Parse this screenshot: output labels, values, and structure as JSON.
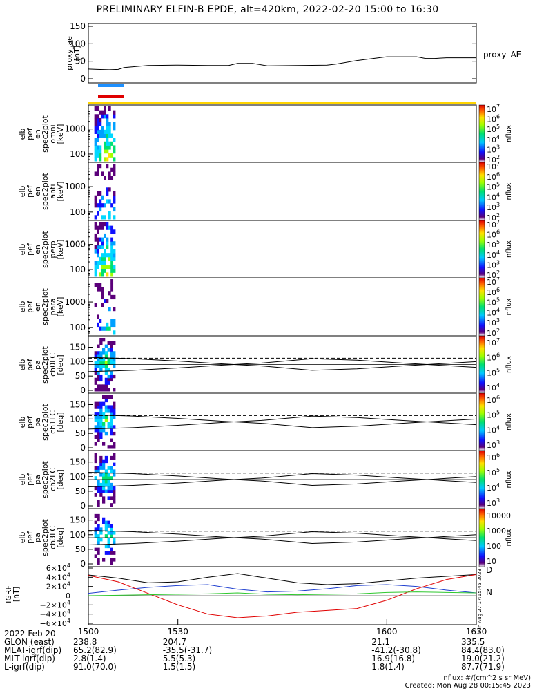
{
  "title": "PRELIMINARY ELFIN-B EPDE, alt=420km, 2022-02-20 15:00 to 16:30",
  "proxy_panel": {
    "ylabel_lines": [
      "proxy_ae",
      "[nT]"
    ],
    "yticks": [
      0,
      50,
      100,
      150
    ],
    "right_label": "proxy_AE"
  },
  "spectrogram_panels": [
    {
      "ylabel_lines": [
        "elb",
        "pef",
        "en",
        "spec2plot",
        "omni",
        "[keV]"
      ],
      "yticks": [
        "100",
        "1000"
      ],
      "cbar_ticks": [
        "10^7",
        "10^6",
        "10^5",
        "10^4",
        "10^3",
        "10^2"
      ],
      "cbar_label": "nflux"
    },
    {
      "ylabel_lines": [
        "elb",
        "pef",
        "en",
        "spec2plot",
        "anti",
        "[keV]"
      ],
      "yticks": [
        "100",
        "1000"
      ],
      "cbar_ticks": [
        "10^7",
        "10^6",
        "10^5",
        "10^4",
        "10^3",
        "10^2"
      ],
      "cbar_label": "nflux"
    },
    {
      "ylabel_lines": [
        "elb",
        "pef",
        "en",
        "spec2plot",
        "perp",
        "[keV]"
      ],
      "yticks": [
        "100",
        "1000"
      ],
      "cbar_ticks": [
        "10^7",
        "10^6",
        "10^5",
        "10^4",
        "10^3",
        "10^2"
      ],
      "cbar_label": "nflux"
    },
    {
      "ylabel_lines": [
        "elb",
        "pef",
        "en",
        "spec2plot",
        "para",
        "[keV]"
      ],
      "yticks": [
        "100",
        "1000"
      ],
      "cbar_ticks": [
        "10^7",
        "10^6",
        "10^5",
        "10^4",
        "10^3",
        "10^2"
      ],
      "cbar_label": "nflux"
    }
  ],
  "pitch_panels": [
    {
      "ylabel_lines": [
        "elb",
        "pef",
        "pa",
        "spec2plot",
        "ch0LC",
        "[deg]"
      ],
      "yticks": [
        0,
        50,
        100,
        150
      ],
      "cbar_ticks": [
        "10^7",
        "10^6",
        "10^5",
        "10^4"
      ],
      "cbar_label": "nflux"
    },
    {
      "ylabel_lines": [
        "elb",
        "pef",
        "pa",
        "spec2plot",
        "ch1LC",
        "[deg]"
      ],
      "yticks": [
        0,
        50,
        100,
        150
      ],
      "cbar_ticks": [
        "10^6",
        "10^5",
        "10^4",
        "10^3"
      ],
      "cbar_label": "nflux"
    },
    {
      "ylabel_lines": [
        "elb",
        "pef",
        "pa",
        "spec2plot",
        "ch2LC",
        "[deg]"
      ],
      "yticks": [
        0,
        50,
        100,
        150
      ],
      "cbar_ticks": [
        "10^6",
        "10^5",
        "10^4",
        "10^3"
      ],
      "cbar_label": "nflux"
    },
    {
      "ylabel_lines": [
        "elb",
        "pef",
        "pa",
        "spec2plot",
        "ch3LC",
        "[deg]"
      ],
      "yticks": [
        0,
        50,
        100,
        150
      ],
      "cbar_ticks": [
        "10000",
        "1000",
        "100",
        "10"
      ],
      "cbar_label": "nflux"
    }
  ],
  "igrf_panel": {
    "ylabel_lines": [
      "IGRF",
      "[nT]"
    ],
    "yticks": [
      "6×10^4",
      "4×10^4",
      "2×10^4",
      "0",
      "−2×10^4",
      "−4×10^4",
      "−6×10^4"
    ],
    "legend": [
      "D",
      "N"
    ],
    "side_text": "Sun Aug 27 17:15:45 2023"
  },
  "time_axis": {
    "tick_labels": [
      "1500",
      "1530",
      "1600",
      "1630"
    ]
  },
  "ephemeris": {
    "rows": [
      {
        "label": "2022 Feb 20",
        "values": [
          "",
          "",
          "",
          ""
        ]
      },
      {
        "label": "GLON (east)",
        "values": [
          "238.8",
          "204.7",
          "21.1",
          "335.5"
        ]
      },
      {
        "label": "MLAT-igrf(dip)",
        "values": [
          "65.2(82.9)",
          "-35.5(-31.7)",
          "-41.2(-30.8)",
          "84.4(83.0)"
        ]
      },
      {
        "label": "MLT-igrf(dip)",
        "values": [
          "2.8(1.4)",
          "5.5(5.3)",
          "16.9(16.8)",
          "19.0(21.2)"
        ]
      },
      {
        "label": "L-igrf(dip)",
        "values": [
          "91.0(70.0)",
          "1.5(1.5)",
          "1.8(1.4)",
          "87.7(71.9)"
        ]
      }
    ]
  },
  "footer": {
    "units": "nflux: #/(cm^2 s sr MeV)",
    "created": "Created: Mon Aug 28 00:15:45 2023"
  },
  "colors": {
    "bar_blue": "#1e90ff",
    "bar_red": "#e00000",
    "bar_yellow": "#ffd400",
    "igrf_black": "#000000",
    "igrf_blue": "#1f3fcf",
    "igrf_red": "#e00000",
    "igrf_green": "#2ec82e"
  },
  "chart_data": [
    {
      "type": "line",
      "panel": "proxy_ae",
      "x": [
        1500,
        1503,
        1507,
        1510,
        1512,
        1520,
        1530,
        1540,
        1547,
        1550,
        1555,
        1560,
        1570,
        1580,
        1583,
        1590,
        1600,
        1610,
        1613,
        1616,
        1620,
        1630
      ],
      "series": [
        {
          "name": "proxy_AE",
          "values": [
            28,
            27,
            26,
            27,
            32,
            38,
            39,
            38,
            38,
            44,
            44,
            37,
            38,
            39,
            42,
            52,
            63,
            63,
            58,
            58,
            60,
            60
          ]
        }
      ],
      "xlim": [
        1500,
        1630
      ],
      "ylim": [
        0,
        150
      ]
    },
    {
      "type": "heatmap",
      "panel": "energy_spectrograms",
      "x_active_range": [
        1502,
        1509
      ],
      "yscale": "log",
      "ylim_keV": [
        60,
        7000
      ],
      "colorbar_range": [
        100,
        10000000
      ]
    },
    {
      "type": "line",
      "panel": "pitch_angle_loss_cone",
      "x": [
        1500,
        1515,
        1530,
        1545,
        1558,
        1575,
        1590,
        1605,
        1620,
        1630
      ],
      "series": [
        {
          "name": "",
          "values": [
            65,
            70,
            78,
            88,
            95,
            110,
            105,
            95,
            86,
            80
          ]
        },
        {
          "name": "",
          "values": [
            115,
            110,
            102,
            92,
            85,
            70,
            75,
            85,
            94,
            100
          ]
        }
      ],
      "xlim": [
        1500,
        1630
      ],
      "ylim": [
        0,
        180
      ]
    },
    {
      "type": "line",
      "panel": "igrf",
      "x": [
        1500,
        1510,
        1520,
        1530,
        1540,
        1550,
        1560,
        1570,
        1580,
        1590,
        1600,
        1610,
        1620,
        1630
      ],
      "series": [
        {
          "name": "",
          "values": [
            45000,
            38000,
            28000,
            30000,
            40000,
            48000,
            38000,
            28000,
            24000,
            26000,
            32000,
            38000,
            42000,
            46000
          ]
        },
        {
          "name": "",
          "values": [
            5000,
            12000,
            18000,
            22000,
            24000,
            14000,
            8000,
            10000,
            15000,
            22000,
            24000,
            20000,
            12000,
            6000
          ]
        },
        {
          "name": "",
          "values": [
            44000,
            30000,
            5000,
            -20000,
            -40000,
            -48000,
            -44000,
            -36000,
            -32000,
            -28000,
            -10000,
            15000,
            35000,
            46000
          ]
        },
        {
          "name": "",
          "values": [
            0,
            1000,
            2000,
            3000,
            4000,
            6000,
            3000,
            2000,
            3000,
            4000,
            7000,
            8000,
            7000,
            6000
          ]
        }
      ],
      "xlim": [
        1500,
        1630
      ],
      "ylim": [
        -60000,
        60000
      ]
    }
  ]
}
